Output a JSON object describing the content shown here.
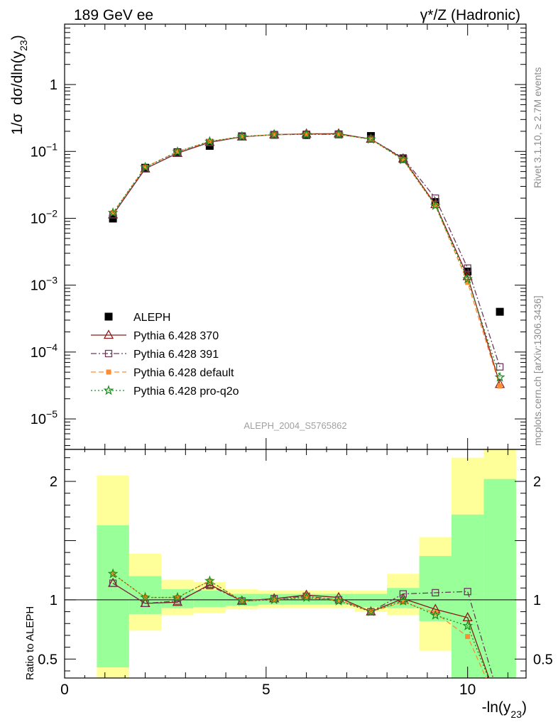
{
  "header": {
    "left": "189 GeV ee",
    "right": "γ*/Z (Hadronic)"
  },
  "side_labels": {
    "rivet": "Rivet 3.1.10, ≥ 2.7M events",
    "mcplots": "mcplots.cern.ch [arXiv:1306.3436]"
  },
  "watermark": "ALEPH_2004_S5765862",
  "colors": {
    "data": "#000000",
    "p370": "#8b1a1a",
    "p391": "#6b3a5a",
    "pdefault": "#ff8c2e",
    "pq2o": "#1a8c1a",
    "band_inner": "#99ff99",
    "band_outer": "#ffff99"
  },
  "chart_data": [
    {
      "type": "scatter",
      "xlabel": "-ln(y23)",
      "ylabel": "1/σ dσ/dln(y23)",
      "yscale": "log",
      "xlim": [
        0,
        11.45
      ],
      "ylim": [
        3.5e-06,
        8
      ],
      "yticks": [
        {
          "v": 1e-05,
          "m": "10",
          "e": "−5"
        },
        {
          "v": 0.0001,
          "m": "10",
          "e": "−4"
        },
        {
          "v": 0.001,
          "m": "10",
          "e": "−3"
        },
        {
          "v": 0.01,
          "m": "10",
          "e": "−2"
        },
        {
          "v": 0.1,
          "m": "10",
          "e": "−1"
        },
        {
          "v": 1,
          "m": "1",
          "e": ""
        }
      ],
      "x": [
        1.2,
        2.0,
        2.8,
        3.6,
        4.4,
        5.2,
        6.0,
        6.8,
        7.6,
        8.4,
        9.2,
        10.0,
        10.8
      ],
      "series": [
        {
          "name": "ALEPH",
          "key": "data",
          "marker": "square",
          "values": [
            0.0099,
            0.057,
            0.097,
            0.121,
            0.168,
            0.177,
            0.176,
            0.18,
            0.17,
            0.077,
            0.0175,
            0.0016,
            0.0004
          ]
        },
        {
          "name": "Pythia 6.428 370",
          "key": "p370",
          "marker": "triangle",
          "dash": "",
          "values": [
            0.0113,
            0.055,
            0.094,
            0.137,
            0.165,
            0.178,
            0.183,
            0.184,
            0.153,
            0.078,
            0.0161,
            0.00135,
            3.3e-05
          ]
        },
        {
          "name": "Pythia 6.428 391",
          "key": "p391",
          "marker": "opensquare",
          "dash": "8,3,2,3",
          "values": [
            0.0113,
            0.055,
            0.095,
            0.136,
            0.166,
            0.178,
            0.181,
            0.18,
            0.153,
            0.08,
            0.02,
            0.0018,
            6e-05
          ]
        },
        {
          "name": "Pythia 6.428 default",
          "key": "pdefault",
          "marker": "filledsquare",
          "dash": "7,4",
          "values": [
            0.0121,
            0.058,
            0.099,
            0.141,
            0.167,
            0.178,
            0.18,
            0.18,
            0.152,
            0.075,
            0.0155,
            0.0011,
            3.1e-05
          ]
        },
        {
          "name": "Pythia 6.428 pro-q2o",
          "key": "pq2o",
          "marker": "star",
          "dash": "2,3",
          "values": [
            0.0121,
            0.058,
            0.099,
            0.141,
            0.167,
            0.178,
            0.18,
            0.18,
            0.152,
            0.075,
            0.0155,
            0.00124,
            4.2e-05
          ]
        }
      ]
    },
    {
      "type": "line",
      "ylabel": "Ratio to ALEPH",
      "xlim": [
        0,
        11.45
      ],
      "ylim": [
        0.34,
        2.27
      ],
      "xticks": [
        0,
        5,
        10
      ],
      "yticks": [
        0.5,
        1,
        2
      ],
      "bands": {
        "edges": [
          0.8,
          1.6,
          2.4,
          3.2,
          4.0,
          4.8,
          5.6,
          6.4,
          7.2,
          8.0,
          8.8,
          9.6,
          10.4,
          11.2
        ],
        "outer": [
          [
            0.0,
            2.05
          ],
          [
            0.74,
            1.39
          ],
          [
            0.87,
            1.17
          ],
          [
            0.89,
            1.15
          ],
          [
            0.92,
            1.09
          ],
          [
            0.93,
            1.08
          ],
          [
            0.93,
            1.08
          ],
          [
            0.93,
            1.08
          ],
          [
            0.9,
            1.08
          ],
          [
            0.87,
            1.22
          ],
          [
            0.57,
            1.53
          ],
          [
            0.0,
            2.2
          ],
          [
            0.0,
            2.3
          ]
        ],
        "inner": [
          [
            0.43,
            1.63
          ],
          [
            0.88,
            1.2
          ],
          [
            0.93,
            1.09
          ],
          [
            0.94,
            1.08
          ],
          [
            0.95,
            1.05
          ],
          [
            0.96,
            1.05
          ],
          [
            0.96,
            1.05
          ],
          [
            0.96,
            1.05
          ],
          [
            0.94,
            1.05
          ],
          [
            0.93,
            1.1
          ],
          [
            0.82,
            1.37
          ],
          [
            0.0,
            1.72
          ],
          [
            0.0,
            2.02
          ]
        ]
      },
      "x": [
        1.2,
        2.0,
        2.8,
        3.6,
        4.4,
        5.2,
        6.0,
        6.8,
        7.6,
        8.4,
        9.2,
        10.0,
        10.8
      ],
      "series": [
        {
          "key": "p370",
          "marker": "triangle",
          "values": [
            1.14,
            0.97,
            0.98,
            1.13,
            0.99,
            1.01,
            1.04,
            1.02,
            0.9,
            1.01,
            0.92,
            0.85,
            0.08
          ]
        },
        {
          "key": "p391",
          "marker": "opensquare",
          "values": [
            1.14,
            0.97,
            0.99,
            1.12,
            0.99,
            1.01,
            1.03,
            1.0,
            0.9,
            1.05,
            1.06,
            1.07,
            0.15
          ]
        },
        {
          "key": "pdefault",
          "marker": "filledsquare",
          "values": [
            1.22,
            1.02,
            1.02,
            1.16,
            0.99,
            1.0,
            1.02,
            1.0,
            0.9,
            0.98,
            0.89,
            0.69,
            0.08
          ]
        },
        {
          "key": "pq2o",
          "marker": "star",
          "values": [
            1.22,
            1.02,
            1.02,
            1.16,
            0.99,
            1.0,
            1.02,
            0.99,
            0.9,
            0.99,
            0.87,
            0.78,
            0.1
          ]
        }
      ]
    }
  ]
}
